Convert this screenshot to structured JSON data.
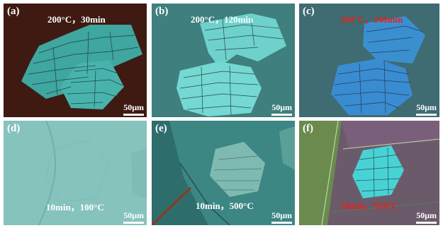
{
  "figure": {
    "panels": [
      {
        "id": "a",
        "label": "(a)",
        "condition": "200°C，30min",
        "scale_bar": "50μm",
        "condition_color": "#ffffff"
      },
      {
        "id": "b",
        "label": "(b)",
        "condition": "200°C，120min",
        "scale_bar": "50μm",
        "condition_color": "#ffffff"
      },
      {
        "id": "c",
        "label": "(c)",
        "condition": "200°C，240min",
        "scale_bar": "50μm",
        "condition_color": "#e8201e"
      },
      {
        "id": "d",
        "label": "(d)",
        "condition": "10min，100°C",
        "scale_bar": "50μm",
        "condition_color": "#ffffff"
      },
      {
        "id": "e",
        "label": "(e)",
        "condition": "10min，500°C",
        "scale_bar": "50μm",
        "condition_color": "#ffffff"
      },
      {
        "id": "f",
        "label": "(f)",
        "condition": "10min，950°C",
        "scale_bar": "50μm",
        "condition_color": "#e8201e"
      }
    ]
  }
}
